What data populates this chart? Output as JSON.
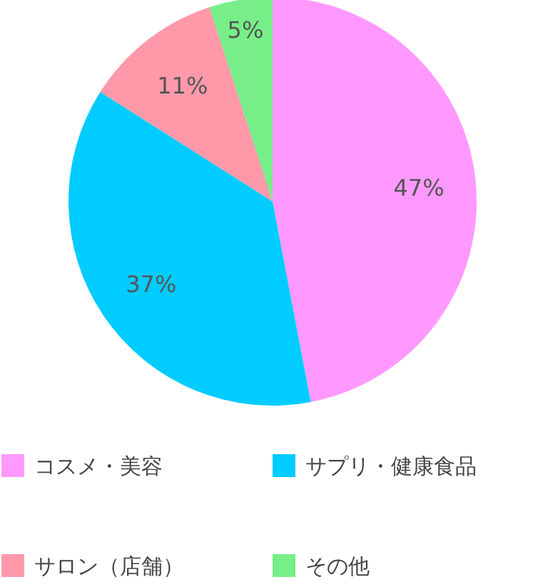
{
  "chart_data": {
    "type": "pie",
    "categories": [
      "コスメ・美容",
      "サプリ・健康食品",
      "サロン（店舗）",
      "その他"
    ],
    "values": [
      47,
      37,
      11,
      5
    ],
    "colors": [
      "#ff99ff",
      "#00ccff",
      "#ff99aa",
      "#77ee88"
    ],
    "value_labels": [
      "47%",
      "37%",
      "11%",
      "5%"
    ],
    "legend": "bottom"
  }
}
